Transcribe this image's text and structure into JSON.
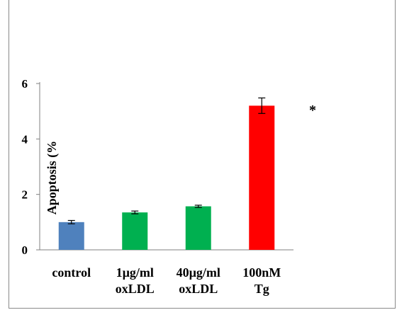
{
  "chart_data": {
    "type": "bar",
    "title": "",
    "xlabel": "",
    "ylabel": "Apoptosis (%",
    "ylim": [
      0,
      6
    ],
    "yticks": [
      0,
      2,
      4,
      6
    ],
    "grid": false,
    "categories": [
      [
        "control"
      ],
      [
        "1µg/ml",
        "oxLDL"
      ],
      [
        "40µg/ml",
        "oxLDL"
      ],
      [
        "100nM",
        "Tg"
      ]
    ],
    "values": [
      1.0,
      1.35,
      1.57,
      5.2
    ],
    "errors": [
      0.06,
      0.05,
      0.04,
      0.28
    ],
    "colors": [
      "#4f81bd",
      "#00b050",
      "#00b050",
      "#ff0000"
    ],
    "annotation": "*"
  }
}
